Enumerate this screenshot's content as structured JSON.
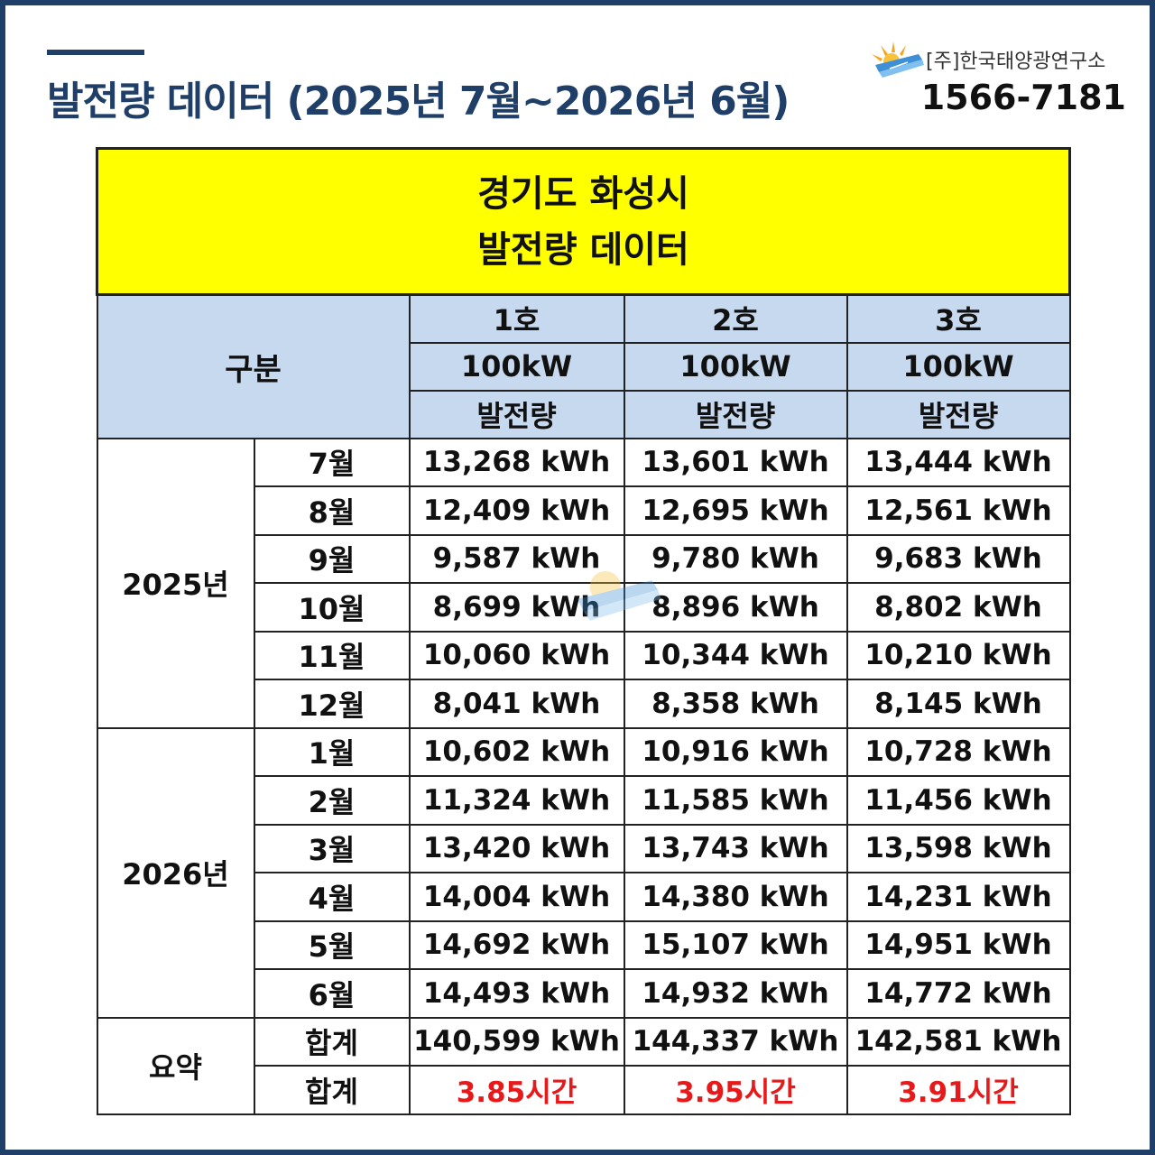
{
  "header": {
    "title": "발전량 데이터 (2025년 7월~2026년 6월)",
    "company": "[주]한국태양광연구소",
    "phone": "1566-7181"
  },
  "table": {
    "banner_line1": "경기도 화성시",
    "banner_line2": "발전량 데이터",
    "category_label": "구분",
    "units": [
      {
        "name": "1호",
        "capacity": "100kW",
        "metric": "발전량"
      },
      {
        "name": "2호",
        "capacity": "100kW",
        "metric": "발전량"
      },
      {
        "name": "3호",
        "capacity": "100kW",
        "metric": "발전량"
      }
    ],
    "years": [
      {
        "label": "2025년",
        "rows": [
          {
            "month": "7월",
            "values": [
              "13,268 kWh",
              "13,601 kWh",
              "13,444 kWh"
            ]
          },
          {
            "month": "8월",
            "values": [
              "12,409 kWh",
              "12,695 kWh",
              "12,561 kWh"
            ]
          },
          {
            "month": "9월",
            "values": [
              "9,587 kWh",
              "9,780 kWh",
              "9,683 kWh"
            ]
          },
          {
            "month": "10월",
            "values": [
              "8,699 kWh",
              "8,896 kWh",
              "8,802 kWh"
            ]
          },
          {
            "month": "11월",
            "values": [
              "10,060 kWh",
              "10,344 kWh",
              "10,210 kWh"
            ]
          },
          {
            "month": "12월",
            "values": [
              "8,041 kWh",
              "8,358 kWh",
              "8,145 kWh"
            ]
          }
        ]
      },
      {
        "label": "2026년",
        "rows": [
          {
            "month": "1월",
            "values": [
              "10,602 kWh",
              "10,916 kWh",
              "10,728 kWh"
            ]
          },
          {
            "month": "2월",
            "values": [
              "11,324 kWh",
              "11,585 kWh",
              "11,456 kWh"
            ]
          },
          {
            "month": "3월",
            "values": [
              "13,420 kWh",
              "13,743 kWh",
              "13,598 kWh"
            ]
          },
          {
            "month": "4월",
            "values": [
              "14,004 kWh",
              "14,380 kWh",
              "14,231 kWh"
            ]
          },
          {
            "month": "5월",
            "values": [
              "14,692 kWh",
              "15,107 kWh",
              "14,951 kWh"
            ]
          },
          {
            "month": "6월",
            "values": [
              "14,493 kWh",
              "14,932 kWh",
              "14,772 kWh"
            ]
          }
        ]
      }
    ],
    "summary": {
      "label": "요약",
      "total_label": "합계",
      "totals": [
        "140,599 kWh",
        "144,337 kWh",
        "142,581 kWh"
      ],
      "hours_label": "합계",
      "hours": [
        "3.85시간",
        "3.95시간",
        "3.91시간"
      ]
    }
  },
  "colors": {
    "title": "#1f3f68",
    "banner": "#ffff00",
    "header_bg": "#c6d9ef",
    "hours_text": "#e8191a"
  }
}
